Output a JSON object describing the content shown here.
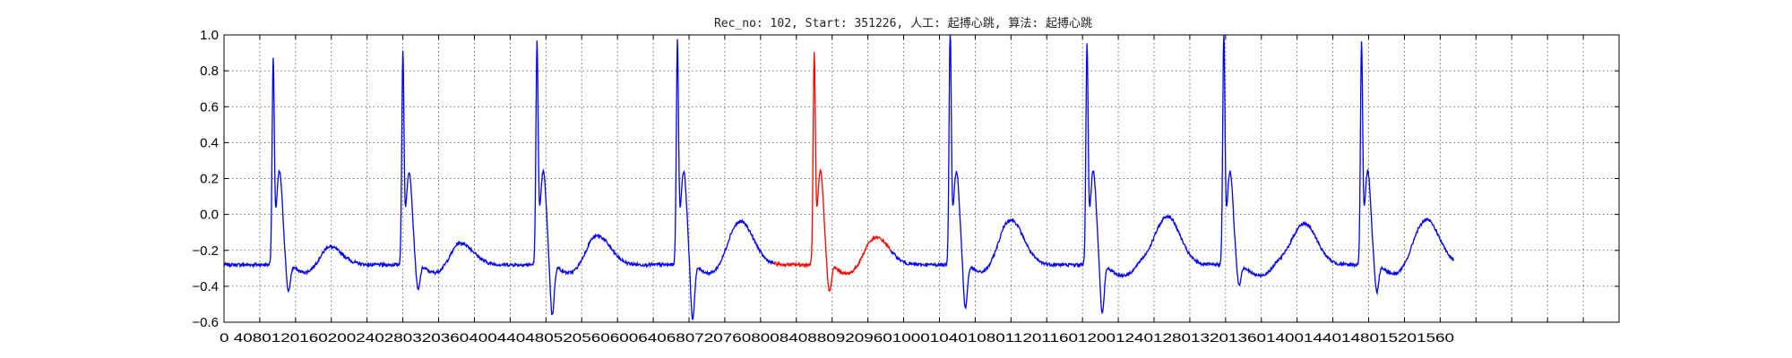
{
  "chart_data": {
    "type": "line",
    "title": "Rec_no: 102, Start: 351226, 人工: 起搏心跳, 算法: 起搏心跳",
    "xlabel": "",
    "ylabel": "",
    "xlim": [
      0,
      1560
    ],
    "ylim": [
      -0.6,
      1.0
    ],
    "y_ticks": [
      1.0,
      0.8,
      0.6,
      0.4,
      0.2,
      0.0,
      -0.2,
      -0.4,
      -0.6
    ],
    "y_tick_labels": [
      "1.0",
      "0.8",
      "0.6",
      "0.4",
      "0.2",
      "0.0",
      "−0.2",
      "−0.4",
      "−0.6"
    ],
    "x_ticks": [
      0,
      40,
      80,
      120,
      160,
      200,
      240,
      280,
      320,
      360,
      400,
      440,
      480,
      520,
      560,
      600,
      640,
      680,
      720,
      760,
      800,
      840,
      880,
      920,
      960,
      1000,
      1040,
      1080,
      1120,
      1160,
      1200,
      1240,
      1280,
      1320,
      1360,
      1400,
      1440,
      1480,
      1520,
      1560
    ],
    "x_tick_labels": [
      "0",
      "40",
      "80",
      "120",
      "160",
      "200",
      "240",
      "280",
      "320",
      "360",
      "400",
      "440",
      "480",
      "520",
      "560",
      "600",
      "640",
      "680",
      "720",
      "760",
      "800",
      "840",
      "880",
      "920",
      "960",
      "1000",
      "1040",
      "1080",
      "1120",
      "1160",
      "1200",
      "1240",
      "1280",
      "1320",
      "1360",
      "1400",
      "1440",
      "1480",
      "1520",
      "1560"
    ],
    "x_tick_text": "0 4080120160200240280320360400440480520560600640680720760800840880920960100010401080112011601200124012801320136014001440148015201560",
    "grid": true,
    "beats": [
      {
        "peak_x": 55,
        "peak_y": 0.8,
        "min_y": -0.44,
        "t_x": 118,
        "t_y": -0.18,
        "highlight": false
      },
      {
        "peak_x": 200,
        "peak_y": 0.84,
        "min_y": -0.43,
        "t_x": 265,
        "t_y": -0.16,
        "highlight": false
      },
      {
        "peak_x": 350,
        "peak_y": 0.9,
        "min_y": -0.57,
        "t_x": 418,
        "t_y": -0.12,
        "highlight": false
      },
      {
        "peak_x": 507,
        "peak_y": 0.9,
        "min_y": -0.59,
        "t_x": 578,
        "t_y": -0.04,
        "highlight": false
      },
      {
        "peak_x": 660,
        "peak_y": 0.83,
        "min_y": -0.44,
        "t_x": 730,
        "t_y": -0.13,
        "highlight": true
      },
      {
        "peak_x": 812,
        "peak_y": 0.98,
        "min_y": -0.53,
        "t_x": 880,
        "t_y": -0.03,
        "highlight": false
      },
      {
        "peak_x": 965,
        "peak_y": 0.89,
        "min_y": -0.56,
        "t_x": 1055,
        "t_y": -0.01,
        "highlight": false
      },
      {
        "peak_x": 1118,
        "peak_y": 0.95,
        "min_y": -0.4,
        "t_x": 1208,
        "t_y": -0.05,
        "highlight": false
      },
      {
        "peak_x": 1272,
        "peak_y": 0.9,
        "min_y": -0.44,
        "t_x": 1345,
        "t_y": -0.03,
        "highlight": false
      }
    ],
    "baseline_y": -0.28,
    "x_end": 1375,
    "y_end": -0.13,
    "highlight_range": [
      615,
      745
    ],
    "series": [
      {
        "color": "#0000ff"
      },
      {
        "color": "#ff0000"
      }
    ]
  }
}
